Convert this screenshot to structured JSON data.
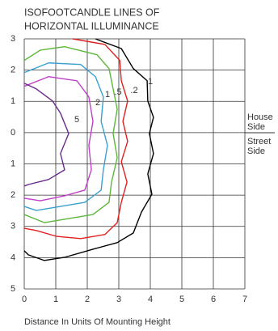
{
  "chart_data": {
    "type": "contour",
    "title": [
      "ISOFOOTCANDLE LINES OF",
      "HORIZONTAL ILLUMINANCE"
    ],
    "x_label": "Distance In Units Of Mounting Height",
    "side_labels": {
      "house": [
        "House",
        "Side"
      ],
      "street": [
        "Street",
        "Side"
      ]
    },
    "xlim": [
      0,
      7
    ],
    "xticks": [
      0,
      1,
      2,
      3,
      4,
      5,
      6,
      7
    ],
    "ylim": [
      -5,
      3
    ],
    "yticks": [
      3,
      2,
      1,
      0,
      {
        "value": -1,
        "label": "1"
      },
      {
        "value": -2,
        "label": "2"
      },
      {
        "value": -3,
        "label": "3"
      },
      {
        "value": -4,
        "label": "4"
      },
      {
        "value": -5,
        "label": "5"
      }
    ],
    "grid": true,
    "series": [
      {
        "name": "1",
        "color": "#000000",
        "x": [
          2.26,
          3.08,
          3.46,
          3.9,
          3.92,
          4.1,
          3.97,
          4.1,
          3.92,
          4.05,
          3.72,
          3.46,
          2.95,
          2.18,
          1.28,
          0.64,
          0.13,
          0
        ],
        "values": [
          3,
          2.69,
          2.05,
          1.66,
          1.01,
          0.49,
          -0.03,
          -0.67,
          -1.32,
          -1.97,
          -2.54,
          -3.21,
          -3.52,
          -3.73,
          -3.99,
          -4.09,
          -3.91,
          -3.78
        ]
      },
      {
        "name": ".2",
        "color": "#e02020",
        "x": [
          1.54,
          2.56,
          3.03,
          3.08,
          3.28,
          3.13,
          3.28,
          3.08,
          3.26,
          3.08,
          2.95,
          2.56,
          1.79,
          1.03,
          0.38,
          0
        ],
        "values": [
          3,
          2.82,
          2.31,
          1.66,
          1.01,
          0.36,
          -0.28,
          -0.93,
          -1.58,
          -2.23,
          -2.88,
          -3.26,
          -3.39,
          -3.32,
          -3.13,
          -3.06
        ]
      },
      {
        "name": ".5",
        "color": "#5cb83a",
        "x": [
          0,
          0.51,
          1.28,
          2.31,
          2.69,
          2.82,
          2.95,
          2.82,
          2.95,
          2.77,
          2.69,
          2.18,
          1.41,
          0.64,
          0
        ],
        "values": [
          2.31,
          2.64,
          2.75,
          2.49,
          2.05,
          1.4,
          0.75,
          -0.03,
          -0.8,
          -1.58,
          -2.23,
          -2.62,
          -2.75,
          -2.88,
          -2.62
        ]
      },
      {
        "name": "1",
        "color": "#3aa0d0",
        "x": [
          0,
          0.77,
          1.79,
          2.26,
          2.51,
          2.44,
          2.64,
          2.51,
          2.44,
          1.92,
          1.15,
          0.38,
          0
        ],
        "values": [
          1.92,
          2.23,
          2.18,
          1.79,
          1.14,
          0.36,
          -0.41,
          -1.19,
          -1.84,
          -2.23,
          -2.36,
          -2.49,
          -2.36
        ]
      },
      {
        "name": "2",
        "color": "#c040c8",
        "x": [
          0,
          0.77,
          1.67,
          2.05,
          2.18,
          2.05,
          2.13,
          1.92,
          1.28,
          0.51,
          0
        ],
        "values": [
          1.48,
          1.79,
          1.66,
          1.14,
          0.36,
          -0.41,
          -1.19,
          -1.84,
          -2.02,
          -2.18,
          -2.1
        ]
      },
      {
        "name": "5",
        "color": "#6a2a8a",
        "x": [
          0,
          0.38,
          0.9,
          1.15,
          1.41,
          1.15,
          1.28,
          0.77,
          0.13,
          0
        ],
        "values": [
          1.58,
          1.4,
          1.01,
          0.62,
          -0.03,
          -0.67,
          -1.19,
          -1.5,
          -1.66,
          -1.71
        ]
      }
    ]
  }
}
